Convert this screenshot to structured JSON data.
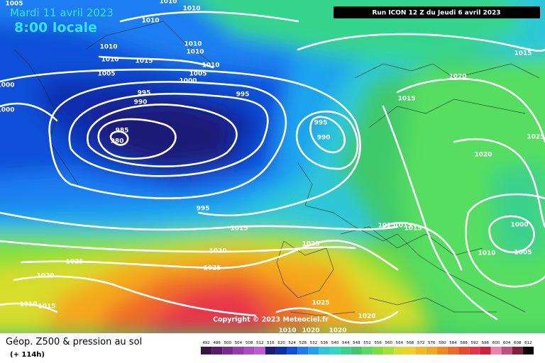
{
  "header": {
    "date": "Mardi 11 avril 2023",
    "time": "8:00 locale",
    "run": "Run ICON 12 Z du Jeudi 6 avril 2023"
  },
  "copyright": "Copyright © 2023 Meteociel.fr",
  "isobars": [
    1005,
    1010,
    1010,
    1010,
    1010,
    1010,
    1015,
    1010,
    1010,
    1010,
    1005,
    1005,
    1000,
    1000,
    1000,
    995,
    990,
    995,
    985,
    980,
    995,
    990,
    995,
    1015,
    1020,
    1025,
    1025,
    1025,
    1020,
    1010,
    1015,
    1025,
    1020,
    1020,
    1020,
    1015,
    1020,
    1015,
    1025,
    1020,
    1015,
    1015,
    1015,
    1000,
    1005,
    1010,
    1010
  ],
  "footer": {
    "title": "Géop. Z500 & pression au sol",
    "lead_time": "(+ 114h)"
  },
  "scale": {
    "labels": [
      492,
      496,
      500,
      504,
      508,
      512,
      516,
      520,
      524,
      528,
      532,
      536,
      540,
      544,
      548,
      552,
      556,
      560,
      564,
      568,
      572,
      576,
      580,
      584,
      588,
      592,
      596,
      600,
      604,
      608,
      612
    ],
    "colors": [
      "#3a1440",
      "#5a1a6a",
      "#7a2a90",
      "#9a3ab0",
      "#b04ac8",
      "#c05ad8",
      "#1a1e78",
      "#0a2eb0",
      "#0d4fd8",
      "#1a7ef2",
      "#1ea4ee",
      "#2fc7d8",
      "#2fd8c0",
      "#35d48d",
      "#40c96a",
      "#55de5e",
      "#7ddf3a",
      "#a8e030",
      "#d8dc2a",
      "#f0d020",
      "#f5b81e",
      "#f5a81e",
      "#f08a20",
      "#f06a28",
      "#e84a30",
      "#e8344a",
      "#d02040",
      "#f080b0",
      "#c05080",
      "#802040",
      "#100008"
    ]
  }
}
